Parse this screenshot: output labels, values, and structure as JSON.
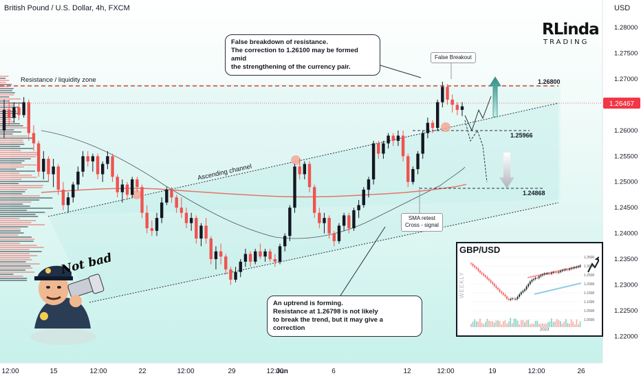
{
  "header": {
    "title": "British Pound / U.S. Dollar, 4h, FXCM",
    "currency": "USD"
  },
  "branding": {
    "name_top": "RLinda",
    "name_bottom": "TRADING"
  },
  "annotations": {
    "resistance_zone": "Resistance / liquidity zone",
    "ascending_channel": "Ascending channel",
    "false_breakout": "False Breakout",
    "sma_retest": "SMA retest\nCross - signal",
    "callout_top": "False breakdown of resistance.\nThe correction to 1.26100 may be formed amid\nthe strengthening of the currency pair.",
    "callout_bottom": "An uptrend is forming.\nResistance at 1.26798 is not likely\nto break the trend, but it may give a correction",
    "cartoon_caption": "Not bad"
  },
  "levels": {
    "resistance": "1.26800",
    "mid": "1.25966",
    "target": "1.24868",
    "current_price": "1.26467"
  },
  "colors": {
    "up": "#131722",
    "down": "#ef5350",
    "resistance_line": "#e53935",
    "sma_fast": "#e57368",
    "sma_slow": "#2a2e39",
    "current_price_bg": "#f23645",
    "channel_fill": "#bff0ea",
    "arrow_up": "#3a9e8f",
    "arrow_down": "#b2b5be"
  },
  "chart_data": {
    "type": "candlestick",
    "symbol": "GBP/USD",
    "timeframe": "4h",
    "ylim": [
      1.2175,
      1.2835
    ],
    "y_ticks": [
      "1.28000",
      "1.27500",
      "1.27000",
      "1.26500",
      "1.26000",
      "1.25500",
      "1.25000",
      "1.24500",
      "1.24000",
      "1.23500",
      "1.23000",
      "1.22500",
      "1.22000"
    ],
    "x_ticks": [
      "12:00",
      "15",
      "12:00",
      "22",
      "12:00",
      "29",
      "12:00",
      "Jun",
      "6",
      "12",
      "12:00",
      "19",
      "12:00",
      "26"
    ],
    "candles": [
      [
        1.26,
        1.266,
        1.2585,
        1.264
      ],
      [
        1.264,
        1.266,
        1.261,
        1.2625
      ],
      [
        1.2625,
        1.2655,
        1.2615,
        1.2645
      ],
      [
        1.2645,
        1.2655,
        1.262,
        1.263
      ],
      [
        1.263,
        1.2665,
        1.2625,
        1.2655
      ],
      [
        1.2655,
        1.266,
        1.258,
        1.2595
      ],
      [
        1.2595,
        1.261,
        1.256,
        1.2575
      ],
      [
        1.2575,
        1.258,
        1.251,
        1.252
      ],
      [
        1.252,
        1.256,
        1.2505,
        1.2545
      ],
      [
        1.2545,
        1.255,
        1.25,
        1.2515
      ],
      [
        1.2515,
        1.2545,
        1.249,
        1.253
      ],
      [
        1.253,
        1.2535,
        1.2475,
        1.2485
      ],
      [
        1.2485,
        1.25,
        1.2445,
        1.2455
      ],
      [
        1.2455,
        1.248,
        1.244,
        1.247
      ],
      [
        1.247,
        1.25,
        1.246,
        1.2495
      ],
      [
        1.2495,
        1.253,
        1.2485,
        1.252
      ],
      [
        1.252,
        1.256,
        1.251,
        1.255
      ],
      [
        1.255,
        1.256,
        1.253,
        1.254
      ],
      [
        1.254,
        1.2555,
        1.252,
        1.255
      ],
      [
        1.255,
        1.2555,
        1.2505,
        1.2515
      ],
      [
        1.2515,
        1.254,
        1.25,
        1.2535
      ],
      [
        1.2535,
        1.256,
        1.2525,
        1.255
      ],
      [
        1.255,
        1.2555,
        1.25,
        1.251
      ],
      [
        1.251,
        1.2515,
        1.247,
        1.248
      ],
      [
        1.248,
        1.2505,
        1.246,
        1.2495
      ],
      [
        1.2495,
        1.25,
        1.2465,
        1.2475
      ],
      [
        1.2475,
        1.251,
        1.247,
        1.2505
      ],
      [
        1.2505,
        1.251,
        1.248,
        1.249
      ],
      [
        1.249,
        1.2495,
        1.243,
        1.244
      ],
      [
        1.244,
        1.2455,
        1.24,
        1.241
      ],
      [
        1.241,
        1.2425,
        1.2395,
        1.2405
      ],
      [
        1.2405,
        1.244,
        1.2395,
        1.243
      ],
      [
        1.243,
        1.247,
        1.242,
        1.246
      ],
      [
        1.246,
        1.249,
        1.2455,
        1.2485
      ],
      [
        1.2485,
        1.249,
        1.246,
        1.247
      ],
      [
        1.247,
        1.2475,
        1.244,
        1.245
      ],
      [
        1.245,
        1.247,
        1.243,
        1.244
      ],
      [
        1.244,
        1.245,
        1.241,
        1.242
      ],
      [
        1.242,
        1.244,
        1.2405,
        1.243
      ],
      [
        1.243,
        1.2435,
        1.238,
        1.239
      ],
      [
        1.239,
        1.242,
        1.2375,
        1.2415
      ],
      [
        1.2415,
        1.243,
        1.238,
        1.239
      ],
      [
        1.239,
        1.2395,
        1.234,
        1.235
      ],
      [
        1.235,
        1.2375,
        1.233,
        1.2365
      ],
      [
        1.2365,
        1.238,
        1.234,
        1.2355
      ],
      [
        1.2355,
        1.236,
        1.232,
        1.233
      ],
      [
        1.233,
        1.2335,
        1.23,
        1.231
      ],
      [
        1.231,
        1.2335,
        1.2305,
        1.2325
      ],
      [
        1.2325,
        1.235,
        1.2315,
        1.2345
      ],
      [
        1.2345,
        1.237,
        1.2335,
        1.236
      ],
      [
        1.236,
        1.2365,
        1.2335,
        1.2345
      ],
      [
        1.2345,
        1.237,
        1.234,
        1.2365
      ],
      [
        1.2365,
        1.238,
        1.235,
        1.2355
      ],
      [
        1.2355,
        1.237,
        1.2345,
        1.2365
      ],
      [
        1.2365,
        1.237,
        1.2345,
        1.235
      ],
      [
        1.235,
        1.236,
        1.2335,
        1.2345
      ],
      [
        1.2345,
        1.238,
        1.234,
        1.2375
      ],
      [
        1.2375,
        1.24,
        1.2365,
        1.2395
      ],
      [
        1.2395,
        1.2455,
        1.2385,
        1.245
      ],
      [
        1.245,
        1.2535,
        1.244,
        1.253
      ],
      [
        1.253,
        1.2545,
        1.2505,
        1.2515
      ],
      [
        1.2515,
        1.254,
        1.2505,
        1.2535
      ],
      [
        1.2535,
        1.254,
        1.248,
        1.249
      ],
      [
        1.249,
        1.2495,
        1.243,
        1.244
      ],
      [
        1.244,
        1.245,
        1.241,
        1.242
      ],
      [
        1.242,
        1.244,
        1.24,
        1.243
      ],
      [
        1.243,
        1.2435,
        1.239,
        1.24
      ],
      [
        1.24,
        1.2405,
        1.2375,
        1.2385
      ],
      [
        1.2385,
        1.242,
        1.238,
        1.2415
      ],
      [
        1.2415,
        1.244,
        1.2405,
        1.2435
      ],
      [
        1.2435,
        1.244,
        1.24,
        1.241
      ],
      [
        1.241,
        1.245,
        1.2405,
        1.2445
      ],
      [
        1.2445,
        1.2465,
        1.243,
        1.2455
      ],
      [
        1.2455,
        1.249,
        1.245,
        1.2485
      ],
      [
        1.2485,
        1.251,
        1.247,
        1.2505
      ],
      [
        1.2505,
        1.258,
        1.2495,
        1.2575
      ],
      [
        1.2575,
        1.258,
        1.2545,
        1.2555
      ],
      [
        1.2555,
        1.258,
        1.2545,
        1.2575
      ],
      [
        1.2575,
        1.2595,
        1.2565,
        1.259
      ],
      [
        1.259,
        1.2595,
        1.257,
        1.258
      ],
      [
        1.258,
        1.26,
        1.257,
        1.259
      ],
      [
        1.259,
        1.26,
        1.254,
        1.255
      ],
      [
        1.255,
        1.2555,
        1.249,
        1.25
      ],
      [
        1.25,
        1.253,
        1.2495,
        1.2525
      ],
      [
        1.2525,
        1.256,
        1.2515,
        1.2555
      ],
      [
        1.2555,
        1.26,
        1.2545,
        1.2595
      ],
      [
        1.2595,
        1.2625,
        1.2585,
        1.2615
      ],
      [
        1.2615,
        1.262,
        1.2595,
        1.2605
      ],
      [
        1.2605,
        1.266,
        1.26,
        1.2655
      ],
      [
        1.2655,
        1.2695,
        1.2645,
        1.2685
      ],
      [
        1.2685,
        1.269,
        1.265,
        1.266
      ],
      [
        1.266,
        1.267,
        1.2635,
        1.265
      ],
      [
        1.265,
        1.2655,
        1.263,
        1.264
      ],
      [
        1.264,
        1.2655,
        1.2628,
        1.2647
      ]
    ]
  },
  "inset": {
    "title": "GBP/USD",
    "side_label": "WEEKLY",
    "year_label": "2023",
    "price_labels": [
      "1.3500",
      "1.3000",
      "1.2500",
      "1.2000",
      "1.1500",
      "1.1000",
      "1.0500",
      "1.0000"
    ]
  }
}
